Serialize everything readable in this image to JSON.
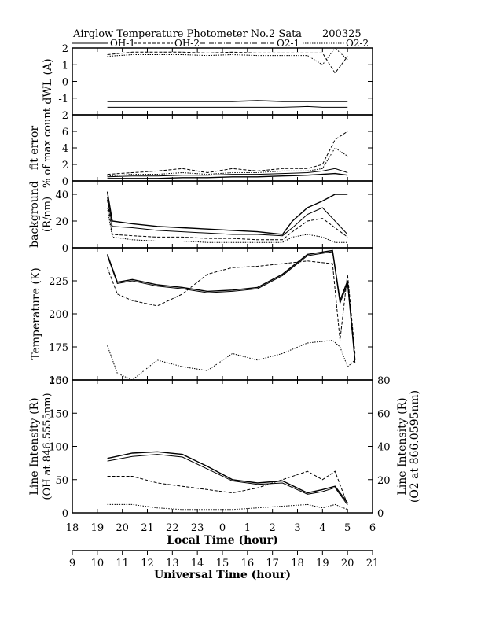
{
  "header": {
    "title": "Airglow Temperature Photometer No.2  Sata",
    "date": "200325"
  },
  "legend": [
    {
      "label": "OH-1",
      "style": "solid"
    },
    {
      "label": "OH-2",
      "style": "dashed"
    },
    {
      "label": "O2-1",
      "style": "dash-dot"
    },
    {
      "label": "O2-2",
      "style": "dotted"
    }
  ],
  "chart_data": [
    {
      "type": "line",
      "panel": "dwl",
      "ylabel": "dWL (A)",
      "ylim": [
        -2,
        2
      ],
      "yticks": [
        "2",
        "1",
        "0",
        "-1",
        "-2"
      ],
      "x": [
        19.4,
        20.4,
        21.4,
        22.4,
        23.4,
        24.4,
        25.4,
        26.4,
        27.4,
        28.0,
        28.5,
        29.0
      ],
      "series": [
        {
          "name": "OH-1",
          "values": [
            -1.2,
            -1.2,
            -1.2,
            -1.2,
            -1.2,
            -1.2,
            -1.15,
            -1.2,
            -1.2,
            -1.2,
            -1.2,
            -1.2
          ]
        },
        {
          "name": "OH-2",
          "values": [
            -1.55,
            -1.55,
            -1.55,
            -1.55,
            -1.55,
            -1.55,
            -1.55,
            -1.55,
            -1.5,
            -1.55,
            -1.55,
            -1.55
          ]
        },
        {
          "name": "O2-1",
          "values": [
            1.6,
            1.75,
            1.75,
            1.75,
            1.7,
            1.75,
            1.7,
            1.7,
            1.7,
            1.7,
            0.5,
            1.5
          ]
        },
        {
          "name": "O2-2",
          "values": [
            1.5,
            1.6,
            1.6,
            1.6,
            1.55,
            1.6,
            1.55,
            1.55,
            1.55,
            1.0,
            2.0,
            1.3
          ]
        }
      ]
    },
    {
      "type": "line",
      "panel": "fit-error",
      "ylabel": "fit error",
      "ylabel2": "% of max count",
      "ylim": [
        0,
        8
      ],
      "yticks": [
        "6",
        "4",
        "2",
        "0"
      ],
      "x": [
        19.4,
        20.4,
        21.4,
        22.4,
        23.4,
        24.4,
        25.4,
        26.4,
        27.4,
        28.0,
        28.5,
        29.0
      ],
      "series": [
        {
          "name": "OH-1",
          "values": [
            0.3,
            0.3,
            0.3,
            0.4,
            0.4,
            0.5,
            0.5,
            0.6,
            0.7,
            0.8,
            0.9,
            0.7
          ]
        },
        {
          "name": "OH-2",
          "values": [
            0.5,
            0.6,
            0.6,
            0.7,
            0.7,
            0.8,
            0.8,
            0.9,
            1.0,
            1.2,
            1.5,
            1.0
          ]
        },
        {
          "name": "O2-1",
          "values": [
            0.8,
            1.0,
            1.2,
            1.5,
            1.0,
            1.5,
            1.2,
            1.5,
            1.5,
            2.0,
            5.0,
            6.0
          ]
        },
        {
          "name": "O2-2",
          "values": [
            0.6,
            0.8,
            0.8,
            1.0,
            0.8,
            1.0,
            1.0,
            1.2,
            1.2,
            1.5,
            4.0,
            3.0
          ]
        }
      ]
    },
    {
      "type": "line",
      "panel": "background",
      "ylabel": "background",
      "ylabel2": "(R/nm)",
      "ylim": [
        0,
        50
      ],
      "yticks": [
        "40",
        "20",
        "0"
      ],
      "x": [
        19.4,
        19.6,
        20.4,
        21.4,
        22.4,
        23.4,
        24.4,
        25.4,
        26.4,
        26.8,
        27.4,
        28.0,
        28.5,
        29.0
      ],
      "series": [
        {
          "name": "OH-1",
          "values": [
            42,
            20,
            18,
            16,
            15,
            14,
            13,
            12,
            10,
            20,
            30,
            35,
            40,
            40
          ]
        },
        {
          "name": "OH-2",
          "values": [
            38,
            16,
            15,
            13,
            12,
            11,
            10,
            10,
            9,
            15,
            25,
            30,
            20,
            10
          ]
        },
        {
          "name": "O2-1",
          "values": [
            36,
            10,
            9,
            8,
            8,
            7,
            7,
            6,
            6,
            12,
            20,
            22,
            15,
            8
          ]
        },
        {
          "name": "O2-2",
          "values": [
            30,
            8,
            6,
            5,
            5,
            4,
            4,
            4,
            4,
            8,
            10,
            8,
            4,
            4
          ]
        }
      ]
    },
    {
      "type": "line",
      "panel": "temperature",
      "ylabel": "Temperature (K)",
      "ylim": [
        150,
        250
      ],
      "yticks": [
        "225",
        "200",
        "175",
        "150"
      ],
      "x": [
        19.4,
        19.8,
        20.4,
        21.4,
        22.4,
        23.4,
        24.4,
        25.4,
        26.4,
        27.4,
        28.4,
        28.7,
        29.0,
        29.3
      ],
      "series": [
        {
          "name": "OH-1",
          "values": [
            245,
            224,
            226,
            222,
            220,
            217,
            218,
            220,
            230,
            245,
            248,
            210,
            225,
            165
          ]
        },
        {
          "name": "OH-2",
          "values": [
            244,
            223,
            225,
            221,
            219,
            216,
            217,
            219,
            229,
            244,
            247,
            208,
            223,
            163
          ]
        },
        {
          "name": "O2-1",
          "values": [
            235,
            215,
            210,
            206,
            215,
            230,
            235,
            236,
            238,
            240,
            238,
            180,
            230,
            170
          ]
        },
        {
          "name": "O2-2",
          "values": [
            176,
            155,
            150,
            165,
            160,
            157,
            170,
            165,
            170,
            178,
            180,
            175,
            160,
            165
          ]
        }
      ]
    },
    {
      "type": "line",
      "panel": "line-intensity",
      "ylabel": "Line Intensity (R)",
      "ylabel2": "(OH at 846.5555nm)",
      "ylabel_right": "Line Intensity (R)",
      "ylabel_right2": "(O2 at 866.0595nm)",
      "ylim": [
        0,
        200
      ],
      "ylim_right": [
        0,
        80
      ],
      "yticks": [
        "200",
        "150",
        "100",
        "50",
        "0"
      ],
      "yticks_right": [
        "80",
        "60",
        "40",
        "20",
        "0"
      ],
      "x": [
        19.4,
        20.4,
        21.4,
        22.4,
        23.4,
        24.4,
        25.4,
        26.4,
        27.4,
        28.0,
        28.5,
        29.0
      ],
      "series": [
        {
          "name": "OH-1",
          "values": [
            82,
            90,
            92,
            88,
            70,
            50,
            45,
            48,
            30,
            35,
            40,
            15
          ]
        },
        {
          "name": "OH-2",
          "values": [
            78,
            85,
            88,
            84,
            66,
            48,
            43,
            45,
            28,
            32,
            38,
            12
          ]
        },
        {
          "name": "O2-1",
          "values": [
            22,
            22,
            18,
            16,
            14,
            12,
            15,
            20,
            25,
            20,
            25,
            5
          ]
        },
        {
          "name": "O2-2",
          "values": [
            5,
            5,
            3,
            2,
            2,
            2,
            3,
            4,
            5,
            3,
            5,
            2
          ]
        }
      ]
    }
  ],
  "axes": {
    "x_local": {
      "label": "Local Time (hour)",
      "ticks": [
        "18",
        "19",
        "20",
        "21",
        "22",
        "23",
        "0",
        "1",
        "2",
        "3",
        "4",
        "5",
        "6"
      ]
    },
    "x_universal": {
      "label": "Universal Time (hour)",
      "ticks": [
        "9",
        "10",
        "11",
        "12",
        "13",
        "14",
        "15",
        "16",
        "17",
        "18",
        "19",
        "20",
        "21"
      ]
    }
  }
}
